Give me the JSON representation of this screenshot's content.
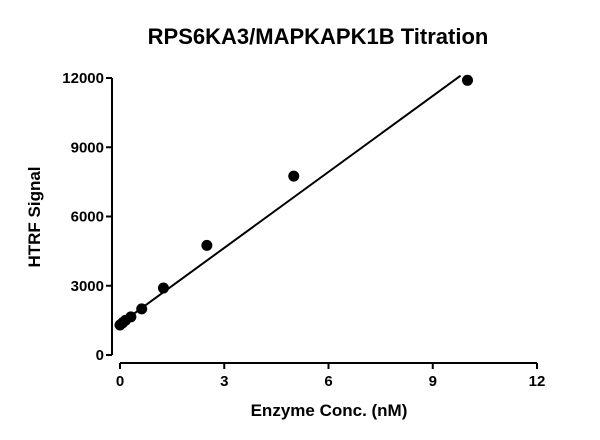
{
  "chart_data": {
    "type": "scatter",
    "title": "RPS6KA3/MAPKAPK1B Titration",
    "xlabel": "Enzyme Conc. (nM)",
    "ylabel": "HTRF Signal",
    "xlim": [
      0,
      12
    ],
    "ylim": [
      0,
      12000
    ],
    "xticks": [
      0,
      3,
      6,
      9,
      12
    ],
    "yticks": [
      0,
      3000,
      6000,
      9000,
      12000
    ],
    "grid": false,
    "series": [
      {
        "x": [
          0,
          0.078,
          0.156,
          0.3125,
          0.625,
          1.25,
          2.5,
          5,
          10
        ],
        "y": [
          1300,
          1400,
          1500,
          1650,
          2000,
          2900,
          4750,
          7750,
          11900
        ]
      }
    ],
    "fit_line": {
      "x": [
        0,
        9.8
      ],
      "y": [
        1350,
        12100
      ]
    }
  }
}
